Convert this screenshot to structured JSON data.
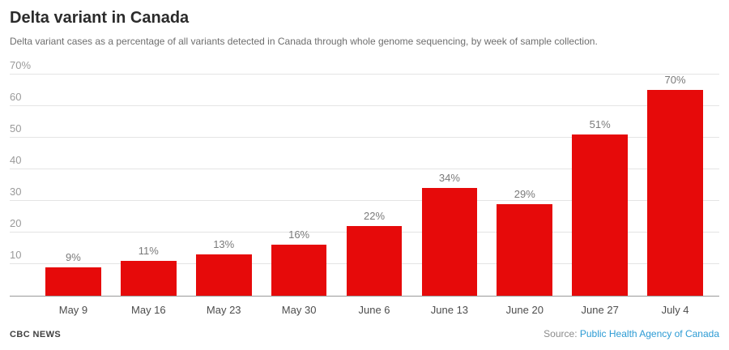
{
  "header": {
    "title": "Delta variant in Canada",
    "subtitle": "Delta variant cases as a percentage of all variants detected in Canada through whole genome sequencing, by week of sample collection."
  },
  "chart_data": {
    "type": "bar",
    "title": "Delta variant in Canada",
    "xlabel": "",
    "ylabel": "",
    "categories": [
      "May 9",
      "May 16",
      "May 23",
      "May 30",
      "June 6",
      "June 13",
      "June 20",
      "June 27",
      "July 4"
    ],
    "values": [
      9,
      11,
      13,
      16,
      22,
      34,
      29,
      51,
      70
    ],
    "value_labels": [
      "9%",
      "11%",
      "13%",
      "16%",
      "22%",
      "34%",
      "29%",
      "51%",
      "70%"
    ],
    "ylim": [
      0,
      70
    ],
    "yticks": [
      {
        "value": 70,
        "label": "70%"
      },
      {
        "value": 60,
        "label": "60"
      },
      {
        "value": 50,
        "label": "50"
      },
      {
        "value": 40,
        "label": "40"
      },
      {
        "value": 30,
        "label": "30"
      },
      {
        "value": 20,
        "label": "20"
      },
      {
        "value": 10,
        "label": "10"
      }
    ],
    "grid": true,
    "legend": "none",
    "bar_color": "#e60a0a"
  },
  "colors": {
    "bar": "#e60a0a",
    "gridline": "#e4e4e4",
    "baseline": "#9a9a9a",
    "link": "#2c9bd4"
  },
  "footer": {
    "brand": "CBC NEWS",
    "source_prefix": "Source:",
    "source_link": "Public Health Agency of Canada"
  }
}
